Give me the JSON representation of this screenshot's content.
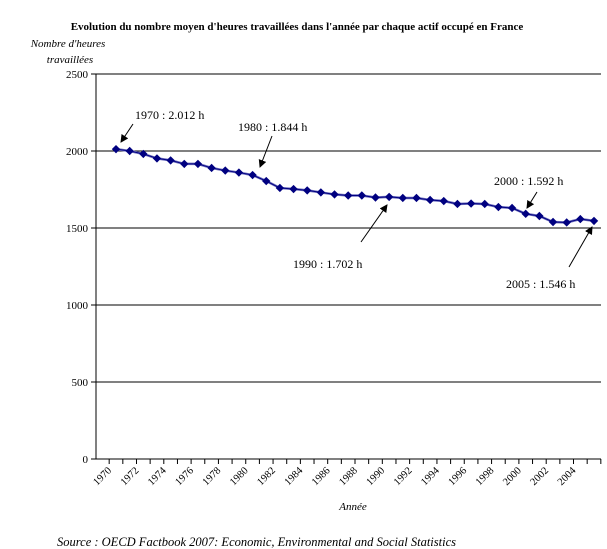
{
  "chart_data": {
    "type": "line",
    "title": "Evolution du nombre moyen d'heures travaillées dans l'année par chaque actif occupé en France",
    "ylabel_line1": "Nombre d'heures",
    "ylabel_line2": "travaillées",
    "xlabel": "Année",
    "ylim": [
      0,
      2500
    ],
    "yticks": [
      0,
      500,
      1000,
      1500,
      2000,
      2500
    ],
    "ytick_labels": [
      "0",
      "500",
      "1000",
      "1500",
      "2000",
      "2500"
    ],
    "xtick_labels": [
      "1970",
      "1972",
      "1974",
      "1976",
      "1978",
      "1980",
      "1982",
      "1984",
      "1986",
      "1988",
      "1990",
      "1992",
      "1994",
      "1996",
      "1998",
      "2000",
      "2002",
      "2004"
    ],
    "grid": "horizontal",
    "legend": "none",
    "series": [
      {
        "name": "Heures travaillées",
        "color": "#000080",
        "x": [
          1970,
          1971,
          1972,
          1973,
          1974,
          1975,
          1976,
          1977,
          1978,
          1979,
          1980,
          1981,
          1982,
          1983,
          1984,
          1985,
          1986,
          1987,
          1988,
          1989,
          1990,
          1991,
          1992,
          1993,
          1994,
          1995,
          1996,
          1997,
          1998,
          1999,
          2000,
          2001,
          2002,
          2003,
          2004,
          2005
        ],
        "values": [
          2012,
          2000,
          1981,
          1952,
          1939,
          1916,
          1916,
          1890,
          1873,
          1860,
          1844,
          1805,
          1760,
          1753,
          1744,
          1731,
          1718,
          1711,
          1711,
          1698,
          1702,
          1695,
          1695,
          1682,
          1675,
          1656,
          1659,
          1656,
          1636,
          1630,
          1592,
          1578,
          1539,
          1536,
          1558,
          1546
        ]
      }
    ],
    "annotations": [
      {
        "text": "1970 : 2.012 h",
        "year": 1970,
        "value": 2012
      },
      {
        "text": "1980 : 1.844 h",
        "year": 1980,
        "value": 1844
      },
      {
        "text": "1990 : 1.702 h",
        "year": 1990,
        "value": 1702
      },
      {
        "text": "2000 : 1.592 h",
        "year": 2000,
        "value": 1592
      },
      {
        "text": "2005 : 1.546 h",
        "year": 2005,
        "value": 1546
      }
    ],
    "source": "Source : OECD Factbook 2007: Economic, Environmental and Social Statistics"
  }
}
